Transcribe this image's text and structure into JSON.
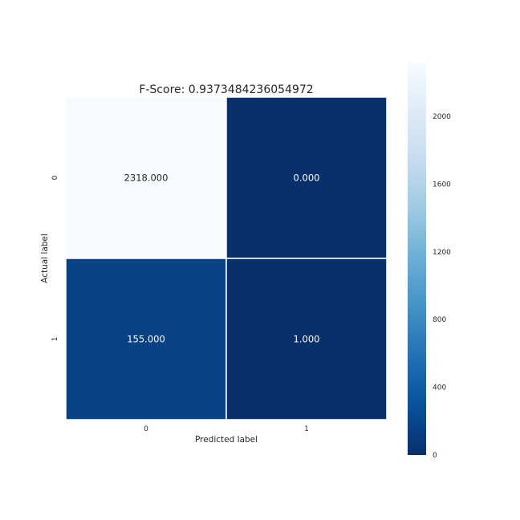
{
  "chart_data": {
    "type": "heatmap",
    "title": "F-Score: 0.9373484236054972",
    "xlabel": "Predicted label",
    "ylabel": "Actual label",
    "x_categories": [
      "0",
      "1"
    ],
    "y_categories": [
      "0",
      "1"
    ],
    "values": [
      [
        2318,
        0
      ],
      [
        155,
        1
      ]
    ],
    "value_labels": [
      [
        "2318.000",
        "0.000"
      ],
      [
        "155.000",
        "1.000"
      ]
    ],
    "colormap": "Blues_r",
    "color_range": [
      0,
      2318
    ],
    "colorbar_ticks": [
      "0",
      "400",
      "800",
      "1200",
      "1600",
      "2000"
    ],
    "colorbar_tick_values": [
      0,
      400,
      800,
      1200,
      1600,
      2000
    ],
    "legend_position": "right"
  }
}
